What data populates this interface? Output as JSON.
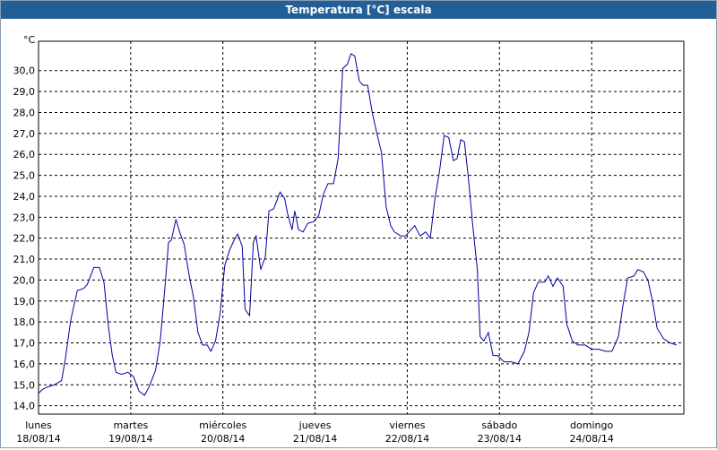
{
  "window_title": "Temperatura [°C] escala",
  "chart_data": {
    "type": "line",
    "y_unit": "°C",
    "xlim": [
      0,
      7
    ],
    "ylim": [
      13.6,
      31.4
    ],
    "xticks": [
      {
        "value": 0,
        "label": [
          "lunes",
          "18/08/14"
        ]
      },
      {
        "value": 1,
        "label": [
          "martes",
          "19/08/14"
        ]
      },
      {
        "value": 2,
        "label": [
          "miércoles",
          "20/08/14"
        ]
      },
      {
        "value": 3,
        "label": [
          "jueves",
          "21/08/14"
        ]
      },
      {
        "value": 4,
        "label": [
          "viernes",
          "22/08/14"
        ]
      },
      {
        "value": 5,
        "label": [
          "sábado",
          "23/08/14"
        ]
      },
      {
        "value": 6,
        "label": [
          "domingo",
          "24/08/14"
        ]
      }
    ],
    "yticks": [
      {
        "value": 14,
        "label": "14,0"
      },
      {
        "value": 15,
        "label": "15,0"
      },
      {
        "value": 16,
        "label": "16,0"
      },
      {
        "value": 17,
        "label": "17,0"
      },
      {
        "value": 18,
        "label": "18,0"
      },
      {
        "value": 19,
        "label": "19,0"
      },
      {
        "value": 20,
        "label": "20,0"
      },
      {
        "value": 21,
        "label": "21,0"
      },
      {
        "value": 22,
        "label": "22,0"
      },
      {
        "value": 23,
        "label": "23,0"
      },
      {
        "value": 24,
        "label": "24,0"
      },
      {
        "value": 25,
        "label": "25,0"
      },
      {
        "value": 26,
        "label": "26,0"
      },
      {
        "value": 27,
        "label": "27,0"
      },
      {
        "value": 28,
        "label": "28,0"
      },
      {
        "value": 29,
        "label": "29,0"
      },
      {
        "value": 30,
        "label": "30,0"
      }
    ],
    "grid": true,
    "series": [
      {
        "color": "#0000a0",
        "x": [
          0.0,
          0.05,
          0.1,
          0.17,
          0.25,
          0.29,
          0.35,
          0.42,
          0.49,
          0.53,
          0.6,
          0.66,
          0.71,
          0.76,
          0.8,
          0.84,
          0.9,
          0.97,
          1.03,
          1.09,
          1.15,
          1.2,
          1.27,
          1.32,
          1.38,
          1.41,
          1.44,
          1.49,
          1.53,
          1.58,
          1.63,
          1.68,
          1.73,
          1.78,
          1.83,
          1.87,
          1.92,
          1.97,
          2.02,
          2.07,
          2.12,
          2.16,
          2.21,
          2.24,
          2.29,
          2.33,
          2.36,
          2.41,
          2.46,
          2.5,
          2.55,
          2.62,
          2.67,
          2.7,
          2.75,
          2.78,
          2.82,
          2.87,
          2.92,
          2.99,
          3.04,
          3.09,
          3.14,
          3.2,
          3.25,
          3.3,
          3.35,
          3.39,
          3.43,
          3.48,
          3.52,
          3.57,
          3.62,
          3.67,
          3.72,
          3.77,
          3.82,
          3.86,
          3.93,
          3.98,
          4.04,
          4.08,
          4.14,
          4.2,
          4.25,
          4.3,
          4.35,
          4.4,
          4.45,
          4.5,
          4.54,
          4.58,
          4.62,
          4.66,
          4.71,
          4.76,
          4.79,
          4.83,
          4.88,
          4.93,
          4.98,
          5.05,
          5.13,
          5.2,
          5.27,
          5.32,
          5.37,
          5.42,
          5.49,
          5.53,
          5.58,
          5.63,
          5.69,
          5.73,
          5.79,
          5.85,
          5.93,
          6.0,
          6.08,
          6.15,
          6.22,
          6.29,
          6.34,
          6.39,
          6.46,
          6.5,
          6.56,
          6.61,
          6.66,
          6.71,
          6.78,
          6.85,
          6.92
        ],
        "values": [
          14.6,
          14.8,
          14.9,
          15.0,
          15.2,
          16.2,
          18.1,
          19.5,
          19.6,
          19.8,
          20.6,
          20.6,
          19.9,
          17.7,
          16.4,
          15.6,
          15.5,
          15.6,
          15.4,
          14.7,
          14.5,
          14.9,
          15.7,
          17.1,
          20.1,
          21.8,
          21.9,
          22.9,
          22.3,
          21.7,
          20.3,
          19.2,
          17.5,
          16.9,
          16.9,
          16.6,
          17.1,
          18.4,
          20.7,
          21.4,
          21.9,
          22.2,
          21.6,
          18.6,
          18.3,
          21.8,
          22.1,
          20.5,
          21.1,
          23.3,
          23.4,
          24.2,
          23.9,
          23.2,
          22.4,
          23.3,
          22.4,
          22.3,
          22.7,
          22.8,
          23.1,
          24.1,
          24.6,
          24.6,
          25.8,
          30.1,
          30.3,
          30.8,
          30.7,
          29.5,
          29.3,
          29.3,
          28.0,
          27.0,
          26.1,
          23.5,
          22.6,
          22.3,
          22.1,
          22.1,
          22.4,
          22.6,
          22.1,
          22.3,
          22.0,
          23.9,
          25.2,
          26.9,
          26.8,
          25.7,
          25.8,
          26.7,
          26.6,
          25.0,
          22.6,
          20.5,
          17.3,
          17.1,
          17.5,
          16.4,
          16.4,
          16.1,
          16.1,
          16.0,
          16.6,
          17.5,
          19.4,
          19.9,
          19.9,
          20.2,
          19.7,
          20.1,
          19.7,
          17.9,
          17.1,
          16.9,
          16.9,
          16.7,
          16.7,
          16.6,
          16.6,
          17.3,
          18.8,
          20.1,
          20.2,
          20.5,
          20.4,
          20.0,
          19.0,
          17.7,
          17.2,
          17.0,
          16.9
        ]
      }
    ]
  }
}
